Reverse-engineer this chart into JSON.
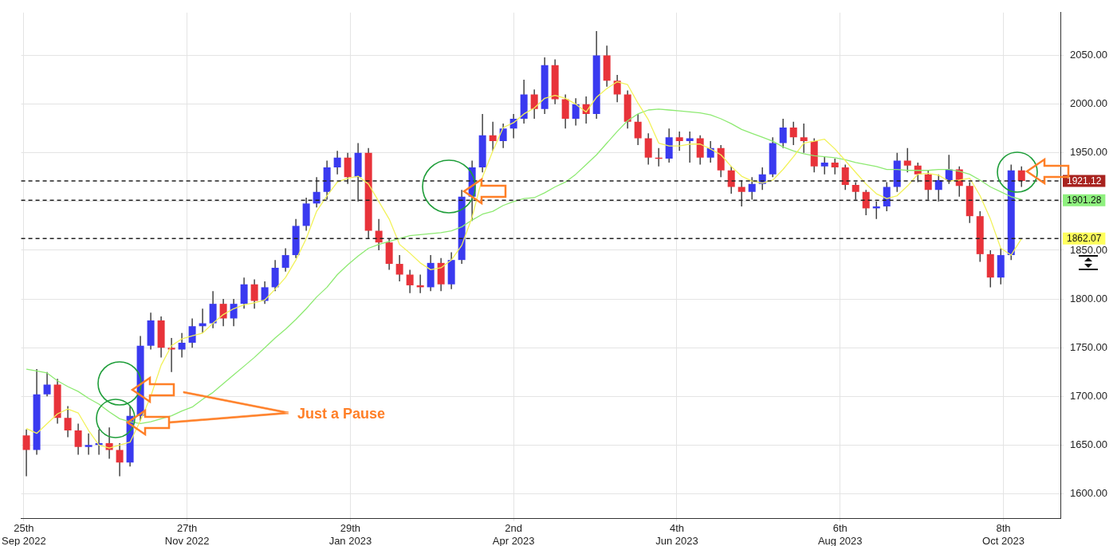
{
  "chart_data": {
    "type": "candlestick",
    "x": [
      "2022-09-26",
      "2022-09-30",
      "2022-10-04",
      "2022-10-08",
      "2022-10-12",
      "2022-10-16",
      "2022-10-20",
      "2022-10-24",
      "2022-10-28",
      "2022-11-01",
      "2022-11-05",
      "2022-11-09",
      "2022-11-13",
      "2022-11-17",
      "2022-11-21",
      "2022-11-25",
      "2022-11-29",
      "2022-12-03",
      "2022-12-07",
      "2022-12-11",
      "2022-12-15",
      "2022-12-19",
      "2022-12-23",
      "2022-12-27",
      "2022-12-31",
      "2023-01-04",
      "2023-01-08",
      "2023-01-12",
      "2023-01-16",
      "2023-01-20",
      "2023-01-24",
      "2023-01-28",
      "2023-02-01",
      "2023-02-05",
      "2023-02-09",
      "2023-02-13",
      "2023-02-17",
      "2023-02-21",
      "2023-02-25",
      "2023-03-01",
      "2023-03-05",
      "2023-03-09",
      "2023-03-13",
      "2023-03-17",
      "2023-03-21",
      "2023-03-25",
      "2023-03-29",
      "2023-04-02",
      "2023-04-06",
      "2023-04-10",
      "2023-04-14",
      "2023-04-18",
      "2023-04-22",
      "2023-04-26",
      "2023-04-30",
      "2023-05-04",
      "2023-05-08",
      "2023-05-12",
      "2023-05-16",
      "2023-05-20",
      "2023-05-24",
      "2023-05-28",
      "2023-06-01",
      "2023-06-05",
      "2023-06-09",
      "2023-06-13",
      "2023-06-17",
      "2023-06-21",
      "2023-06-25",
      "2023-06-29",
      "2023-07-03",
      "2023-07-07",
      "2023-07-11",
      "2023-07-15",
      "2023-07-19",
      "2023-07-23",
      "2023-07-27",
      "2023-07-31",
      "2023-08-04",
      "2023-08-08",
      "2023-08-12",
      "2023-08-16",
      "2023-08-20",
      "2023-08-24",
      "2023-08-28",
      "2023-09-01",
      "2023-09-05",
      "2023-09-09",
      "2023-09-13",
      "2023-09-17",
      "2023-09-21",
      "2023-09-25",
      "2023-09-29",
      "2023-10-03",
      "2023-10-07",
      "2023-10-11",
      "2023-10-15"
    ],
    "series": [
      {
        "type": "line",
        "color": "#f2f25a",
        "values": [
          1667,
          1662,
          1672,
          1682,
          1687,
          1683,
          1665,
          1650,
          1647,
          1650,
          1653,
          1675,
          1700,
          1732,
          1752,
          1759,
          1762,
          1765,
          1775,
          1784,
          1790,
          1794,
          1796,
          1799,
          1810,
          1822,
          1840,
          1862,
          1890,
          1906,
          1920,
          1924,
          1926,
          1918,
          1900,
          1882,
          1856,
          1847,
          1837,
          1830,
          1832,
          1840,
          1855,
          1884,
          1925,
          1952,
          1976,
          1981,
          1990,
          1996,
          2006,
          2009,
          2006,
          2000,
          1992,
          2007,
          2016,
          2023,
          2020,
          2001,
          1984,
          1960,
          1957,
          1957,
          1959,
          1959,
          1954,
          1948,
          1936,
          1926,
          1921,
          1919,
          1922,
          1933,
          1946,
          1960,
          1962,
          1964,
          1954,
          1942,
          1930,
          1918,
          1908,
          1903,
          1906,
          1916,
          1928,
          1929,
          1927,
          1921,
          1922,
          1924,
          1906,
          1882,
          1852,
          1845,
          1862
        ]
      },
      {
        "type": "line",
        "color": "#8eea72",
        "values": [
          1728,
          1726,
          1724,
          1716,
          1710,
          1705,
          1698,
          1692,
          1684,
          1677,
          1674,
          1672,
          1674,
          1677,
          1680,
          1685,
          1689,
          1697,
          1704,
          1713,
          1722,
          1731,
          1740,
          1750,
          1760,
          1769,
          1779,
          1790,
          1802,
          1812,
          1825,
          1835,
          1844,
          1852,
          1856,
          1859,
          1862,
          1865,
          1866,
          1867,
          1868,
          1870,
          1874,
          1881,
          1887,
          1890,
          1896,
          1900,
          1903,
          1904,
          1909,
          1915,
          1920,
          1928,
          1938,
          1948,
          1960,
          1972,
          1983,
          1990,
          1994,
          1995,
          1994,
          1993,
          1992,
          1991,
          1989,
          1985,
          1980,
          1974,
          1970,
          1966,
          1962,
          1956,
          1952,
          1949,
          1947,
          1946,
          1945,
          1943,
          1940,
          1938,
          1936,
          1933,
          1933,
          1932,
          1932,
          1932,
          1933,
          1933,
          1931,
          1928,
          1922,
          1915,
          1910,
          1905,
          1902
        ]
      },
      {
        "type": "candlestick",
        "ohlc": [
          [
            1660,
            1666,
            1618,
            1645
          ],
          [
            1645,
            1728,
            1640,
            1702
          ],
          [
            1702,
            1725,
            1700,
            1712
          ],
          [
            1712,
            1718,
            1672,
            1678
          ],
          [
            1678,
            1690,
            1658,
            1665
          ],
          [
            1665,
            1672,
            1640,
            1648
          ],
          [
            1648,
            1662,
            1640,
            1650
          ],
          [
            1650,
            1666,
            1640,
            1652
          ],
          [
            1652,
            1668,
            1636,
            1645
          ],
          [
            1645,
            1652,
            1618,
            1632
          ],
          [
            1632,
            1690,
            1628,
            1680
          ],
          [
            1680,
            1762,
            1675,
            1752
          ],
          [
            1752,
            1786,
            1748,
            1778
          ],
          [
            1778,
            1782,
            1740,
            1750
          ],
          [
            1750,
            1760,
            1725,
            1748
          ],
          [
            1748,
            1765,
            1740,
            1755
          ],
          [
            1755,
            1780,
            1750,
            1772
          ],
          [
            1772,
            1790,
            1765,
            1775
          ],
          [
            1775,
            1808,
            1770,
            1795
          ],
          [
            1795,
            1800,
            1772,
            1780
          ],
          [
            1780,
            1800,
            1772,
            1795
          ],
          [
            1795,
            1822,
            1790,
            1815
          ],
          [
            1815,
            1820,
            1790,
            1798
          ],
          [
            1798,
            1818,
            1795,
            1812
          ],
          [
            1812,
            1840,
            1808,
            1832
          ],
          [
            1832,
            1852,
            1828,
            1845
          ],
          [
            1845,
            1882,
            1842,
            1875
          ],
          [
            1875,
            1904,
            1870,
            1898
          ],
          [
            1898,
            1925,
            1894,
            1910
          ],
          [
            1910,
            1942,
            1902,
            1935
          ],
          [
            1935,
            1952,
            1928,
            1945
          ],
          [
            1945,
            1950,
            1918,
            1925
          ],
          [
            1925,
            1960,
            1900,
            1950
          ],
          [
            1950,
            1955,
            1862,
            1870
          ],
          [
            1870,
            1882,
            1850,
            1858
          ],
          [
            1858,
            1862,
            1830,
            1836
          ],
          [
            1836,
            1845,
            1818,
            1825
          ],
          [
            1825,
            1830,
            1806,
            1814
          ],
          [
            1814,
            1825,
            1806,
            1812
          ],
          [
            1812,
            1845,
            1808,
            1837
          ],
          [
            1837,
            1842,
            1808,
            1815
          ],
          [
            1815,
            1848,
            1810,
            1840
          ],
          [
            1840,
            1912,
            1836,
            1905
          ],
          [
            1905,
            1942,
            1880,
            1935
          ],
          [
            1935,
            1990,
            1930,
            1968
          ],
          [
            1968,
            1982,
            1952,
            1962
          ],
          [
            1962,
            1980,
            1955,
            1975
          ],
          [
            1975,
            1990,
            1965,
            1985
          ],
          [
            1985,
            2025,
            1980,
            2010
          ],
          [
            2010,
            2015,
            1985,
            1995
          ],
          [
            1995,
            2048,
            1990,
            2040
          ],
          [
            2040,
            2046,
            2000,
            2005
          ],
          [
            2005,
            2010,
            1975,
            1985
          ],
          [
            1985,
            2006,
            1978,
            2000
          ],
          [
            2000,
            2008,
            1980,
            1990
          ],
          [
            1990,
            2075,
            1985,
            2050
          ],
          [
            2050,
            2060,
            2018,
            2024
          ],
          [
            2024,
            2030,
            2002,
            2010
          ],
          [
            2010,
            2014,
            1975,
            1982
          ],
          [
            1982,
            1990,
            1958,
            1965
          ],
          [
            1965,
            1970,
            1938,
            1945
          ],
          [
            1945,
            1955,
            1936,
            1944
          ],
          [
            1944,
            1975,
            1940,
            1966
          ],
          [
            1966,
            1972,
            1952,
            1962
          ],
          [
            1962,
            1972,
            1940,
            1965
          ],
          [
            1965,
            1968,
            1938,
            1945
          ],
          [
            1945,
            1962,
            1940,
            1955
          ],
          [
            1955,
            1958,
            1925,
            1932
          ],
          [
            1932,
            1936,
            1908,
            1915
          ],
          [
            1915,
            1922,
            1895,
            1910
          ],
          [
            1910,
            1925,
            1902,
            1918
          ],
          [
            1918,
            1935,
            1912,
            1928
          ],
          [
            1928,
            1966,
            1925,
            1960
          ],
          [
            1960,
            1985,
            1955,
            1976
          ],
          [
            1976,
            1982,
            1958,
            1966
          ],
          [
            1966,
            1980,
            1950,
            1962
          ],
          [
            1962,
            1965,
            1930,
            1936
          ],
          [
            1936,
            1946,
            1928,
            1940
          ],
          [
            1940,
            1944,
            1928,
            1935
          ],
          [
            1935,
            1938,
            1912,
            1917
          ],
          [
            1917,
            1920,
            1902,
            1910
          ],
          [
            1910,
            1912,
            1886,
            1893
          ],
          [
            1893,
            1900,
            1882,
            1895
          ],
          [
            1895,
            1920,
            1890,
            1915
          ],
          [
            1915,
            1950,
            1910,
            1942
          ],
          [
            1942,
            1955,
            1930,
            1937
          ],
          [
            1937,
            1940,
            1920,
            1928
          ],
          [
            1928,
            1932,
            1902,
            1912
          ],
          [
            1912,
            1928,
            1900,
            1922
          ],
          [
            1922,
            1948,
            1918,
            1933
          ],
          [
            1933,
            1936,
            1905,
            1916
          ],
          [
            1916,
            1920,
            1878,
            1885
          ],
          [
            1885,
            1890,
            1838,
            1846
          ],
          [
            1846,
            1850,
            1812,
            1822
          ],
          [
            1822,
            1852,
            1815,
            1845
          ],
          [
            1845,
            1938,
            1840,
            1932
          ],
          [
            1932,
            1936,
            1915,
            1921.12
          ]
        ],
        "colors": [
          "#e8333a",
          "#3a3af0",
          "#3a3af0",
          "#e8333a",
          "#e8333a",
          "#e8333a",
          "#3a3af0",
          "#3a3af0",
          "#e8333a",
          "#e8333a",
          "#3a3af0",
          "#3a3af0",
          "#3a3af0",
          "#e8333a",
          "#e8333a",
          "#3a3af0",
          "#3a3af0",
          "#3a3af0",
          "#3a3af0",
          "#e8333a",
          "#3a3af0",
          "#3a3af0",
          "#e8333a",
          "#3a3af0",
          "#3a3af0",
          "#3a3af0",
          "#3a3af0",
          "#3a3af0",
          "#3a3af0",
          "#3a3af0",
          "#3a3af0",
          "#e8333a",
          "#3a3af0",
          "#e8333a",
          "#e8333a",
          "#e8333a",
          "#e8333a",
          "#e8333a",
          "#e8333a",
          "#3a3af0",
          "#e8333a",
          "#3a3af0",
          "#3a3af0",
          "#3a3af0",
          "#3a3af0",
          "#e8333a",
          "#3a3af0",
          "#3a3af0",
          "#3a3af0",
          "#e8333a",
          "#3a3af0",
          "#e8333a",
          "#e8333a",
          "#3a3af0",
          "#e8333a",
          "#3a3af0",
          "#e8333a",
          "#e8333a",
          "#e8333a",
          "#e8333a",
          "#e8333a",
          "#e8333a",
          "#3a3af0",
          "#e8333a",
          "#3a3af0",
          "#e8333a",
          "#3a3af0",
          "#e8333a",
          "#e8333a",
          "#e8333a",
          "#3a3af0",
          "#3a3af0",
          "#3a3af0",
          "#3a3af0",
          "#e8333a",
          "#e8333a",
          "#e8333a",
          "#3a3af0",
          "#e8333a",
          "#e8333a",
          "#e8333a",
          "#e8333a",
          "#3a3af0",
          "#3a3af0",
          "#3a3af0",
          "#e8333a",
          "#e8333a",
          "#e8333a",
          "#3a3af0",
          "#3a3af0",
          "#e8333a",
          "#e8333a",
          "#e8333a",
          "#e8333a",
          "#3a3af0",
          "#3a3af0",
          "#e8333a"
        ]
      }
    ],
    "xlim": [
      "2022-09-24",
      "2023-10-30"
    ],
    "xticks": [
      {
        "value": "2022-09-25",
        "label": "25th\nSep 2022"
      },
      {
        "value": "2022-11-27",
        "label": "27th\nNov 2022"
      },
      {
        "value": "2023-01-29",
        "label": "29th\nJan 2023"
      },
      {
        "value": "2023-04-02",
        "label": "2nd\nApr 2023"
      },
      {
        "value": "2023-06-04",
        "label": "4th\nJun 2023"
      },
      {
        "value": "2023-08-06",
        "label": "6th\nAug 2023"
      },
      {
        "value": "2023-10-08",
        "label": "8th\nOct 2023"
      }
    ],
    "ylim": [
      1575,
      2094
    ],
    "yticks": [
      {
        "value": 1600,
        "label": "1600.00"
      },
      {
        "value": 1650,
        "label": "1650.00"
      },
      {
        "value": 1700,
        "label": "1700.00"
      },
      {
        "value": 1750,
        "label": "1750.00"
      },
      {
        "value": 1800,
        "label": "1800.00"
      },
      {
        "value": 1850,
        "label": "1850.00"
      },
      {
        "value": 1900,
        "label": null
      },
      {
        "value": 1950,
        "label": "1950.00"
      },
      {
        "value": 2000,
        "label": "2000.00"
      },
      {
        "value": 2050,
        "label": "2050.00"
      }
    ],
    "ref_lines": [
      {
        "axis": "y",
        "value": 1921.12,
        "label": "1921.12",
        "color": "#222222",
        "line_style": "dashed"
      },
      {
        "axis": "y",
        "value": 1901.28,
        "label": "1901.28",
        "color": "#222222",
        "line_style": "dashed"
      },
      {
        "axis": "y",
        "value": 1862.07,
        "label": "1862.07",
        "color": "#222222",
        "line_style": "dashed"
      }
    ],
    "annotations": [
      "Just a Pause"
    ],
    "grid": true
  }
}
